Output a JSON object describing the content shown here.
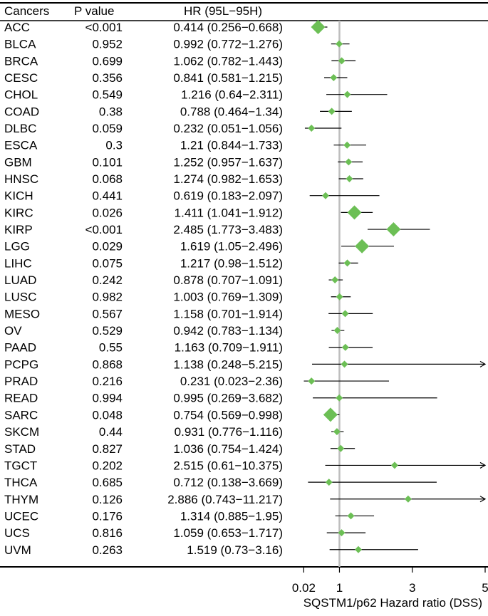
{
  "chart_data": {
    "type": "forest",
    "columns": {
      "cancer": "Cancers",
      "pvalue": "P value",
      "hr": "HR (95L−95H)"
    },
    "xlabel": "SQSTM1/p62 Hazard ratio (DSS)",
    "x_ticks": [
      "0.02",
      "1",
      "3",
      "5"
    ],
    "reference_line": 1,
    "colors": {
      "marker": "#6cbf55",
      "reference": "#bdbdbd",
      "line": "#000000"
    },
    "rows": [
      {
        "cancer": "ACC",
        "p": "<0.001",
        "hr_text": "0.414 (0.256−0.668)",
        "hr": 0.414,
        "lo": 0.256,
        "hi": 0.668,
        "weight": 3
      },
      {
        "cancer": "BLCA",
        "p": "0.952",
        "hr_text": "0.992 (0.772−1.276)",
        "hr": 0.992,
        "lo": 0.772,
        "hi": 1.276,
        "weight": 1
      },
      {
        "cancer": "BRCA",
        "p": "0.699",
        "hr_text": "1.062 (0.782−1.443)",
        "hr": 1.062,
        "lo": 0.782,
        "hi": 1.443,
        "weight": 1
      },
      {
        "cancer": "CESC",
        "p": "0.356",
        "hr_text": "0.841 (0.581−1.215)",
        "hr": 0.841,
        "lo": 0.581,
        "hi": 1.215,
        "weight": 1
      },
      {
        "cancer": "CHOL",
        "p": "0.549",
        "hr_text": "1.216 (0.64−2.311)",
        "hr": 1.216,
        "lo": 0.64,
        "hi": 2.311,
        "weight": 1
      },
      {
        "cancer": "COAD",
        "p": "0.38",
        "hr_text": "0.788 (0.464−1.34)",
        "hr": 0.788,
        "lo": 0.464,
        "hi": 1.34,
        "weight": 1
      },
      {
        "cancer": "DLBC",
        "p": "0.059",
        "hr_text": "0.232 (0.051−1.056)",
        "hr": 0.232,
        "lo": 0.051,
        "hi": 1.056,
        "weight": 1
      },
      {
        "cancer": "ESCA",
        "p": "0.3",
        "hr_text": "1.21 (0.844−1.733)",
        "hr": 1.21,
        "lo": 0.844,
        "hi": 1.733,
        "weight": 1
      },
      {
        "cancer": "GBM",
        "p": "0.101",
        "hr_text": "1.252 (0.957−1.637)",
        "hr": 1.252,
        "lo": 0.957,
        "hi": 1.637,
        "weight": 1
      },
      {
        "cancer": "HNSC",
        "p": "0.068",
        "hr_text": "1.274 (0.982−1.653)",
        "hr": 1.274,
        "lo": 0.982,
        "hi": 1.653,
        "weight": 1
      },
      {
        "cancer": "KICH",
        "p": "0.441",
        "hr_text": "0.619 (0.183−2.097)",
        "hr": 0.619,
        "lo": 0.183,
        "hi": 2.097,
        "weight": 1
      },
      {
        "cancer": "KIRC",
        "p": "0.026",
        "hr_text": "1.411 (1.041−1.912)",
        "hr": 1.411,
        "lo": 1.041,
        "hi": 1.912,
        "weight": 3
      },
      {
        "cancer": "KIRP",
        "p": "<0.001",
        "hr_text": "2.485 (1.773−3.483)",
        "hr": 2.485,
        "lo": 1.773,
        "hi": 3.483,
        "weight": 3
      },
      {
        "cancer": "LGG",
        "p": "0.029",
        "hr_text": "1.619 (1.05−2.496)",
        "hr": 1.619,
        "lo": 1.05,
        "hi": 2.496,
        "weight": 3
      },
      {
        "cancer": "LIHC",
        "p": "0.075",
        "hr_text": "1.217 (0.98−1.512)",
        "hr": 1.217,
        "lo": 0.98,
        "hi": 1.512,
        "weight": 1
      },
      {
        "cancer": "LUAD",
        "p": "0.242",
        "hr_text": "0.878 (0.707−1.091)",
        "hr": 0.878,
        "lo": 0.707,
        "hi": 1.091,
        "weight": 1
      },
      {
        "cancer": "LUSC",
        "p": "0.982",
        "hr_text": "1.003 (0.769−1.309)",
        "hr": 1.003,
        "lo": 0.769,
        "hi": 1.309,
        "weight": 1
      },
      {
        "cancer": "MESO",
        "p": "0.567",
        "hr_text": "1.158 (0.701−1.914)",
        "hr": 1.158,
        "lo": 0.701,
        "hi": 1.914,
        "weight": 1
      },
      {
        "cancer": "OV",
        "p": "0.529",
        "hr_text": "0.942 (0.783−1.134)",
        "hr": 0.942,
        "lo": 0.783,
        "hi": 1.134,
        "weight": 1
      },
      {
        "cancer": "PAAD",
        "p": "0.55",
        "hr_text": "1.163 (0.709−1.911)",
        "hr": 1.163,
        "lo": 0.709,
        "hi": 1.911,
        "weight": 1
      },
      {
        "cancer": "PCPG",
        "p": "0.868",
        "hr_text": "1.138 (0.248−5.215)",
        "hr": 1.138,
        "lo": 0.248,
        "hi": 5.215,
        "weight": 1
      },
      {
        "cancer": "PRAD",
        "p": "0.216",
        "hr_text": "0.231 (0.023−2.36)",
        "hr": 0.231,
        "lo": 0.023,
        "hi": 2.36,
        "weight": 1
      },
      {
        "cancer": "READ",
        "p": "0.994",
        "hr_text": "0.995 (0.269−3.682)",
        "hr": 0.995,
        "lo": 0.269,
        "hi": 3.682,
        "weight": 1
      },
      {
        "cancer": "SARC",
        "p": "0.048",
        "hr_text": "0.754 (0.569−0.998)",
        "hr": 0.754,
        "lo": 0.569,
        "hi": 0.998,
        "weight": 3
      },
      {
        "cancer": "SKCM",
        "p": "0.44",
        "hr_text": "0.931 (0.776−1.116)",
        "hr": 0.931,
        "lo": 0.776,
        "hi": 1.116,
        "weight": 1
      },
      {
        "cancer": "STAD",
        "p": "0.827",
        "hr_text": "1.036 (0.754−1.424)",
        "hr": 1.036,
        "lo": 0.754,
        "hi": 1.424,
        "weight": 1
      },
      {
        "cancer": "TGCT",
        "p": "0.202",
        "hr_text": "2.515 (0.61−10.375)",
        "hr": 2.515,
        "lo": 0.61,
        "hi": 10.375,
        "weight": 1
      },
      {
        "cancer": "THCA",
        "p": "0.685",
        "hr_text": "0.712 (0.138−3.669)",
        "hr": 0.712,
        "lo": 0.138,
        "hi": 3.669,
        "weight": 1
      },
      {
        "cancer": "THYM",
        "p": "0.126",
        "hr_text": "2.886 (0.743−11.217)",
        "hr": 2.886,
        "lo": 0.743,
        "hi": 11.217,
        "weight": 1
      },
      {
        "cancer": "UCEC",
        "p": "0.176",
        "hr_text": "1.314 (0.885−1.95)",
        "hr": 1.314,
        "lo": 0.885,
        "hi": 1.95,
        "weight": 1
      },
      {
        "cancer": "UCS",
        "p": "0.816",
        "hr_text": "1.059 (0.653−1.717)",
        "hr": 1.059,
        "lo": 0.653,
        "hi": 1.717,
        "weight": 1
      },
      {
        "cancer": "UVM",
        "p": "0.263",
        "hr_text": "1.519 (0.73−3.16)",
        "hr": 1.519,
        "lo": 0.73,
        "hi": 3.16,
        "weight": 1
      }
    ]
  }
}
